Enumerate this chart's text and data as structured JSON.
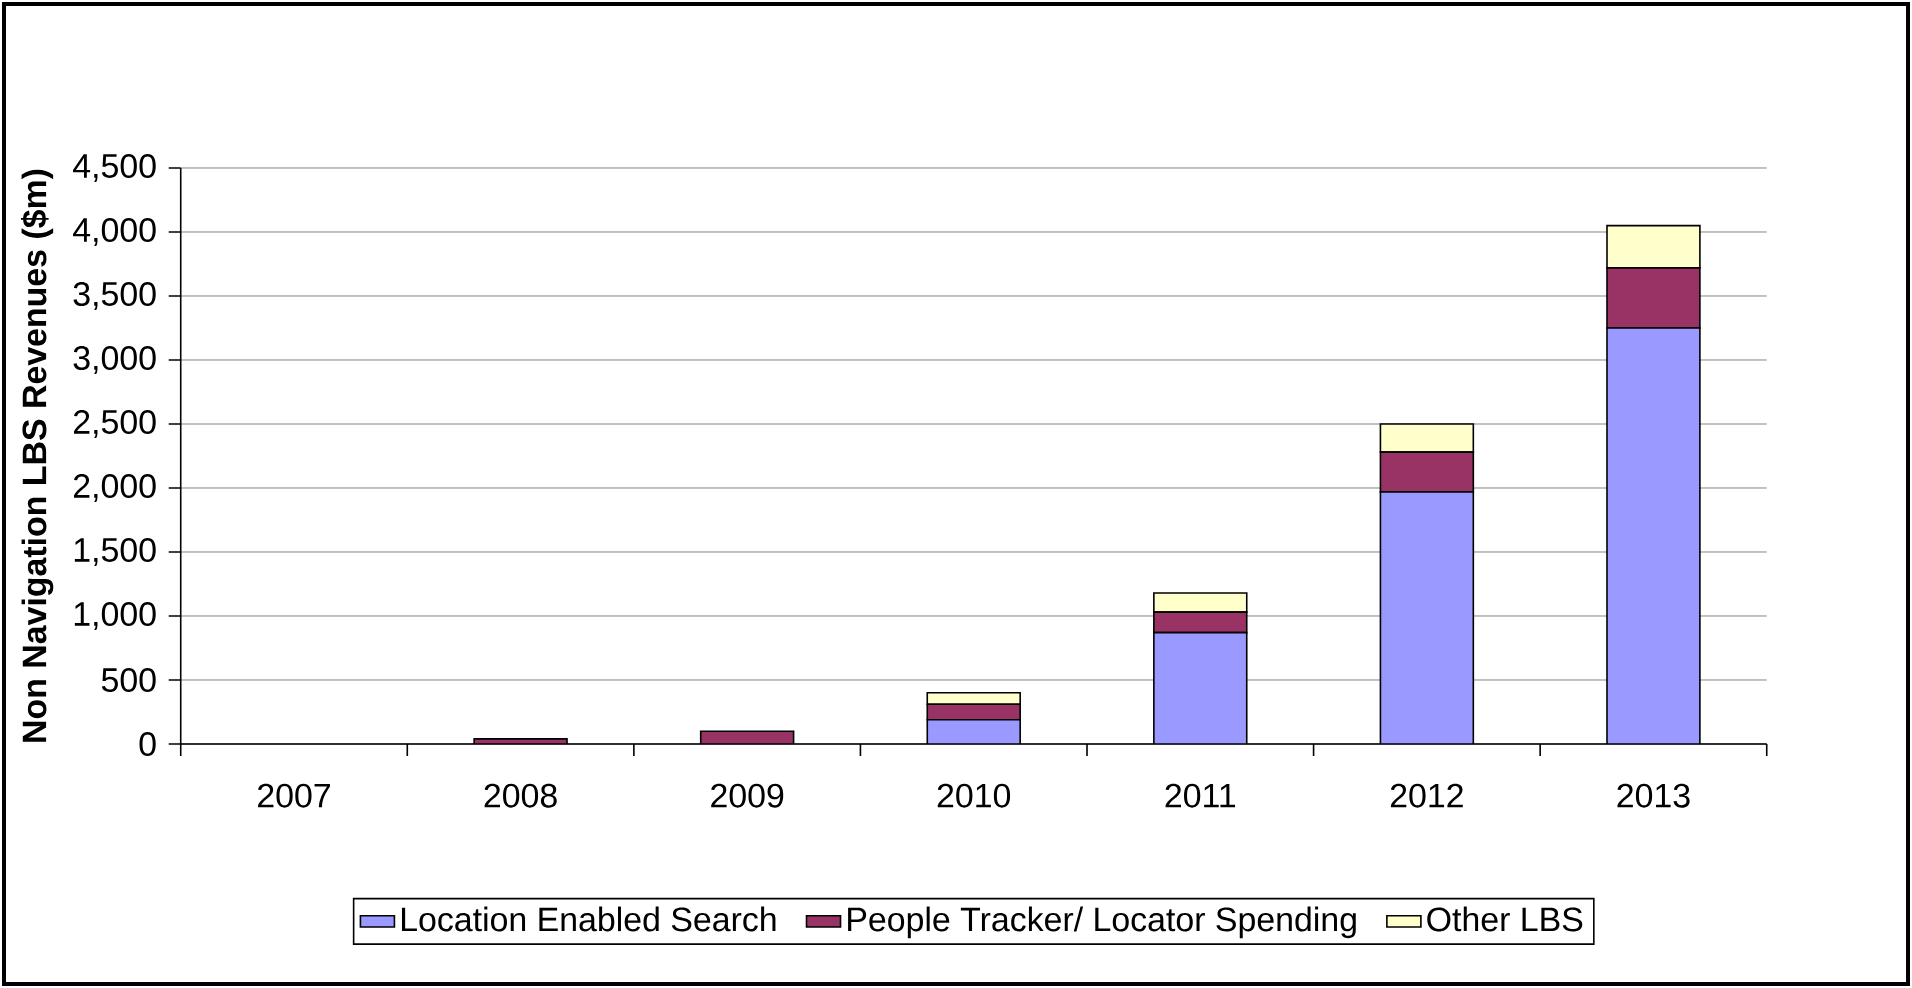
{
  "chart_data": {
    "type": "bar",
    "stacked": true,
    "ylabel": "Non Navigation LBS Revenues ($m)",
    "categories": [
      "2007",
      "2008",
      "2009",
      "2010",
      "2011",
      "2012",
      "2013"
    ],
    "series": [
      {
        "name": "Location Enabled Search",
        "color": "#9999ff",
        "values": [
          0,
          null,
          null,
          190,
          870,
          1970,
          3250
        ]
      },
      {
        "name": "People Tracker/ Locator Spending",
        "color": "#993366",
        "values": [
          0,
          40,
          100,
          120,
          160,
          310,
          470
        ]
      },
      {
        "name": "Other LBS",
        "color": "#ffffcc",
        "values": [
          0,
          null,
          null,
          90,
          150,
          220,
          330
        ]
      }
    ],
    "ylim": [
      0,
      4500
    ],
    "yticks": [
      0,
      {
        "value": 500,
        "label": "500"
      },
      {
        "value": 1000,
        "label": "1,000"
      },
      {
        "value": 1500,
        "label": "1,500"
      },
      {
        "value": 2000,
        "label": "2,000"
      },
      {
        "value": 2500,
        "label": "2,500"
      },
      {
        "value": 3000,
        "label": "3,000"
      },
      {
        "value": 3500,
        "label": "3,500"
      },
      {
        "value": 4000,
        "label": "4,000"
      },
      {
        "value": 4500,
        "label": "4,500"
      }
    ],
    "grid": "y",
    "legend": "bottom"
  }
}
